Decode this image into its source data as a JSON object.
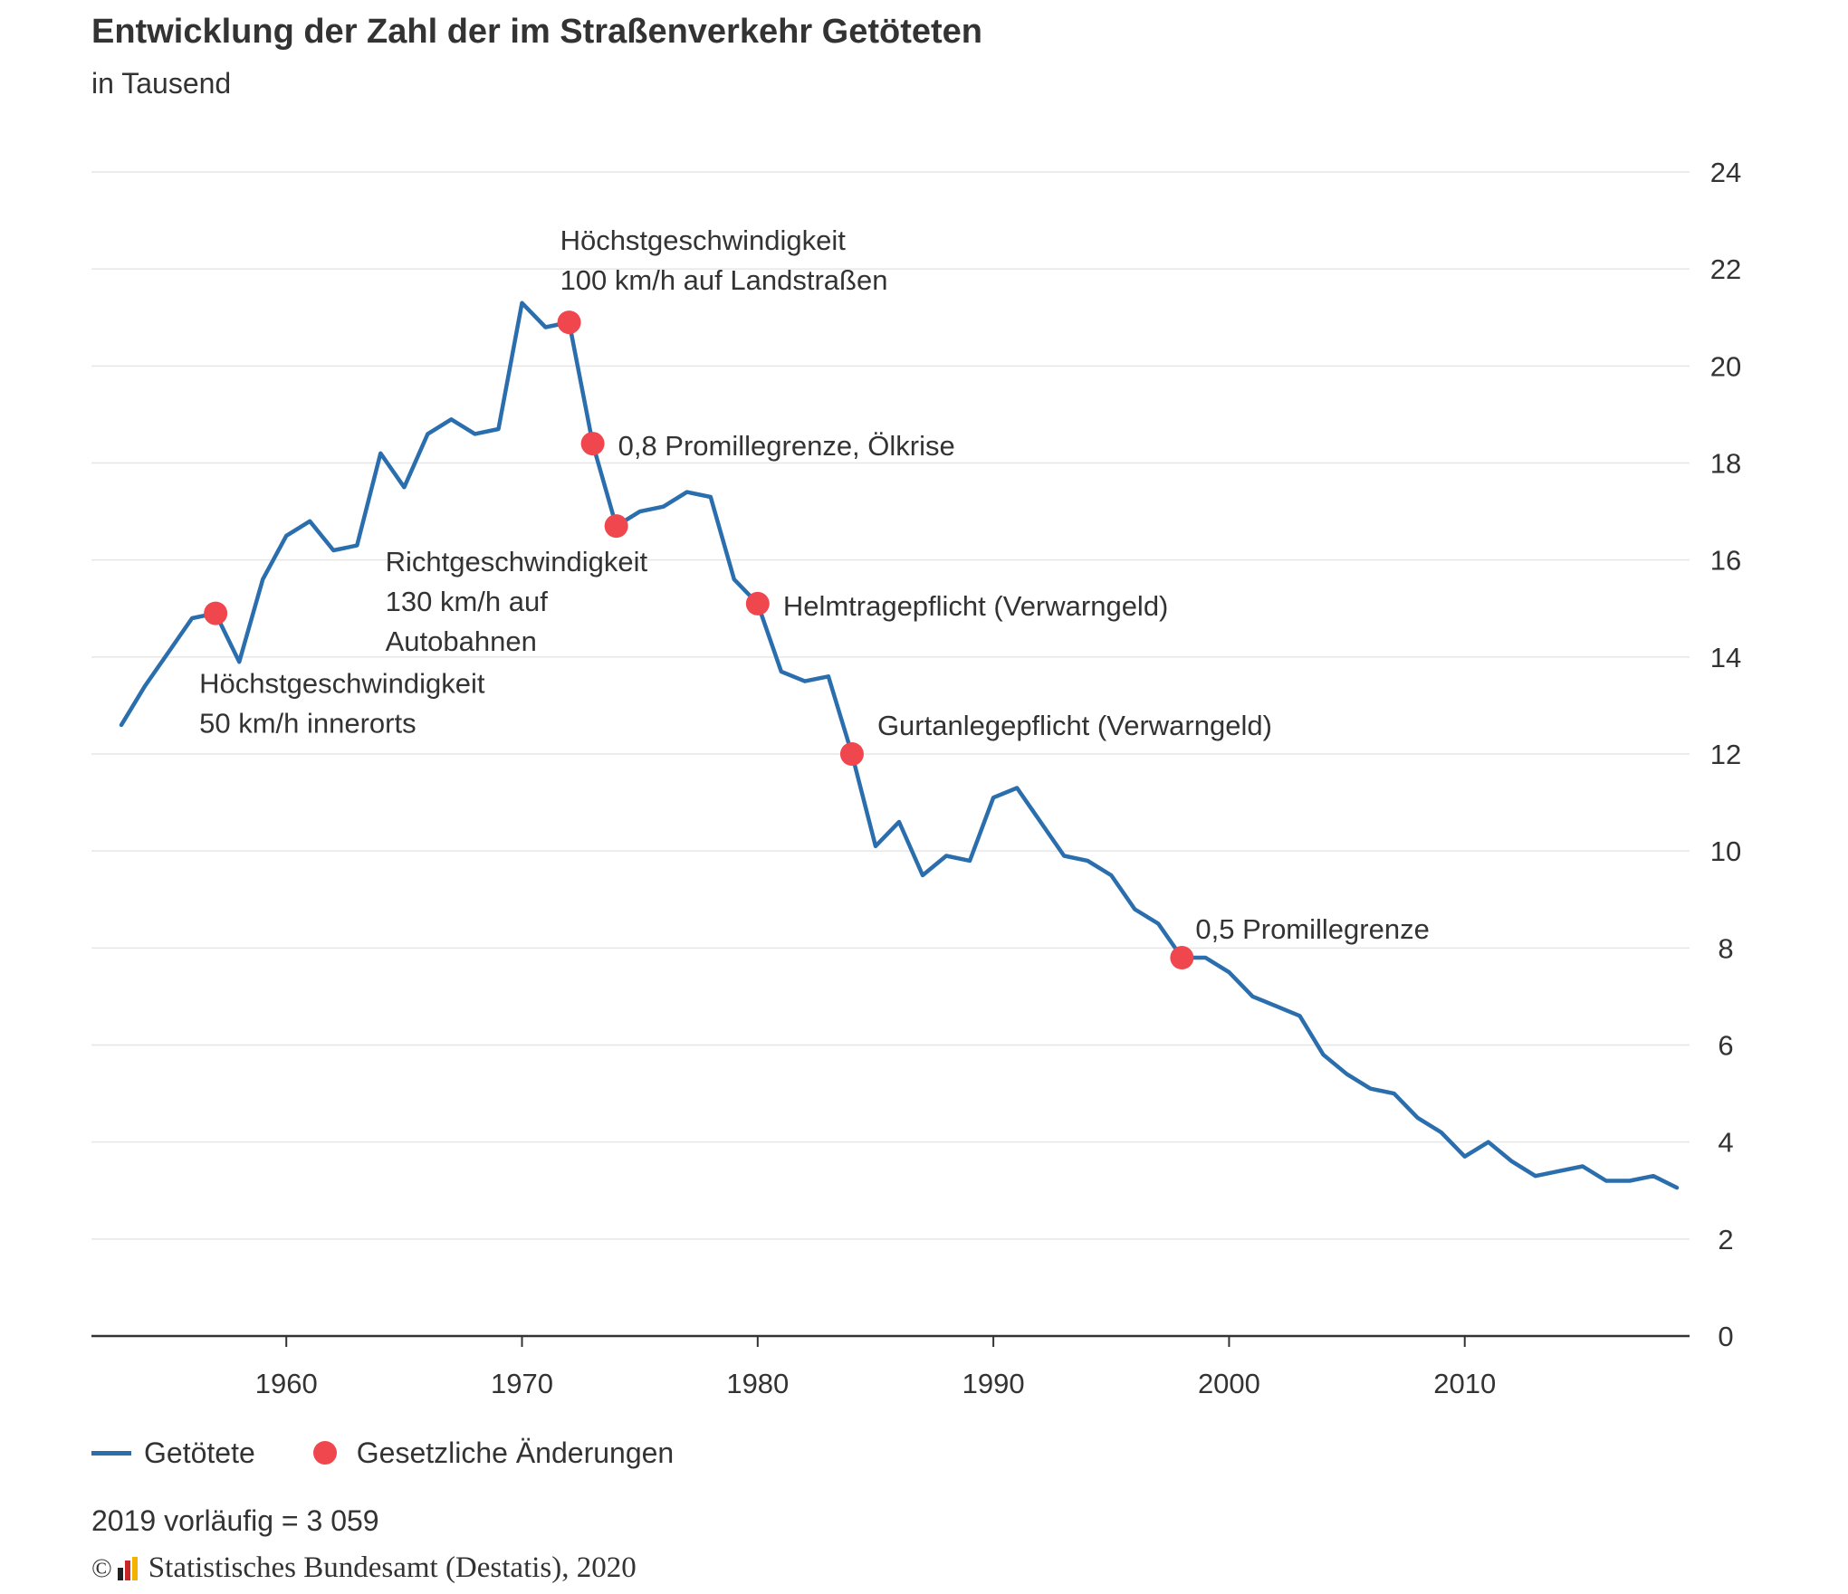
{
  "header": {
    "title": "Entwicklung der Zahl der im Straßenverkehr Getöteten",
    "subtitle": "in Tausend"
  },
  "legend": {
    "series_label": "Getötete",
    "events_label": "Gesetzliche Änderungen"
  },
  "footer": {
    "note": "2019 vorläufig = 3 059",
    "copyright_symbol": "©",
    "source": "Statistisches Bundesamt (Destatis), 2020"
  },
  "colors": {
    "line": "#2b6ead",
    "events": "#f0474e",
    "grid": "#e6e6e6",
    "axis": "#333333"
  },
  "chart_data": {
    "type": "line",
    "title": "Entwicklung der Zahl der im Straßenverkehr Getöteten",
    "subtitle": "in Tausend",
    "xlabel": "",
    "ylabel": "",
    "xlim": [
      1953,
      2019
    ],
    "ylim": [
      0,
      24
    ],
    "x_ticks": [
      1960,
      1970,
      1980,
      1990,
      2000,
      2010
    ],
    "y_ticks": [
      0,
      2,
      4,
      6,
      8,
      10,
      12,
      14,
      16,
      18,
      20,
      22,
      24
    ],
    "y_axis_side": "right",
    "grid": "horizontal",
    "legend_position": "bottom-left",
    "series": [
      {
        "name": "Getötete",
        "x": [
          1953,
          1954,
          1955,
          1956,
          1957,
          1958,
          1959,
          1960,
          1961,
          1962,
          1963,
          1964,
          1965,
          1966,
          1967,
          1968,
          1969,
          1970,
          1971,
          1972,
          1973,
          1974,
          1975,
          1976,
          1977,
          1978,
          1979,
          1980,
          1981,
          1982,
          1983,
          1984,
          1985,
          1986,
          1987,
          1988,
          1989,
          1990,
          1991,
          1992,
          1993,
          1994,
          1995,
          1996,
          1997,
          1998,
          1999,
          2000,
          2001,
          2002,
          2003,
          2004,
          2005,
          2006,
          2007,
          2008,
          2009,
          2010,
          2011,
          2012,
          2013,
          2014,
          2015,
          2016,
          2017,
          2018,
          2019
        ],
        "values": [
          12.6,
          13.4,
          14.1,
          14.8,
          14.9,
          13.9,
          15.6,
          16.5,
          16.8,
          16.2,
          16.3,
          18.2,
          17.5,
          18.6,
          18.9,
          18.6,
          18.7,
          21.3,
          20.8,
          20.9,
          18.4,
          16.7,
          17.0,
          17.1,
          17.4,
          17.3,
          15.6,
          15.1,
          13.7,
          13.5,
          13.6,
          12.0,
          10.1,
          10.6,
          9.5,
          9.9,
          9.8,
          11.1,
          11.3,
          10.6,
          9.9,
          9.8,
          9.5,
          8.8,
          8.5,
          7.8,
          7.8,
          7.5,
          7.0,
          6.8,
          6.6,
          5.8,
          5.4,
          5.1,
          5.0,
          4.5,
          4.2,
          3.7,
          4.0,
          3.6,
          3.3,
          3.4,
          3.5,
          3.2,
          3.2,
          3.3,
          3.059
        ]
      }
    ],
    "events": [
      {
        "year": 1957,
        "value": 14.9,
        "label_lines": [
          "Höchstgeschwindigkeit",
          "50 km/h innerorts"
        ]
      },
      {
        "year": 1972,
        "value": 20.9,
        "label_lines": [
          "Höchstgeschwindigkeit",
          "100 km/h auf Landstraßen"
        ]
      },
      {
        "year": 1973,
        "value": 18.4,
        "label_lines": [
          "0,8 Promillegrenze, Ölkrise"
        ]
      },
      {
        "year": 1974,
        "value": 16.7,
        "label_lines": [
          "Richtgeschwindigkeit",
          "130 km/h auf",
          "Autobahnen"
        ]
      },
      {
        "year": 1980,
        "value": 15.1,
        "label_lines": [
          "Helmtragepflicht (Verwarngeld)"
        ]
      },
      {
        "year": 1984,
        "value": 12.0,
        "label_lines": [
          "Gurtanlegepflicht (Verwarngeld)"
        ]
      },
      {
        "year": 1998,
        "value": 7.8,
        "label_lines": [
          "0,5 Promillegrenze"
        ]
      }
    ]
  }
}
